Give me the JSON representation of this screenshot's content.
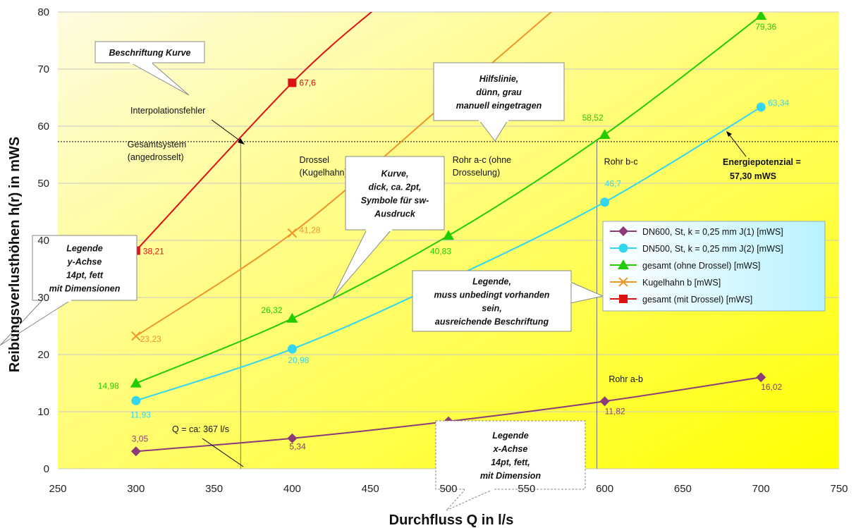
{
  "chart_data": {
    "type": "line",
    "xlabel": "Durchfluss Q in l/s",
    "ylabel": "Reibungsverlusthöhen h(r) in mWS",
    "xlim": [
      250,
      750
    ],
    "ylim": [
      0,
      80
    ],
    "xticks": [
      250,
      300,
      350,
      400,
      450,
      500,
      550,
      600,
      650,
      700,
      750
    ],
    "yticks": [
      0,
      10,
      20,
      30,
      40,
      50,
      60,
      70,
      80
    ],
    "grid": "horizontal",
    "legend_position": "right",
    "background": {
      "from": "#fffbe0",
      "to": "#ffff00"
    },
    "series": [
      {
        "name": "DN600, St, k = 0,25 mm J(1) [mWS]",
        "color": "#8b3a7a",
        "marker": "diamond",
        "x": [
          300,
          400,
          500,
          600,
          700
        ],
        "y": [
          3.05,
          5.34,
          8.3,
          11.82,
          16.02
        ],
        "labels": [
          "3,05",
          "5,34",
          "",
          "11,82",
          "16,02"
        ]
      },
      {
        "name": "DN500, St, k = 0,25 mm J(2) [mWS]",
        "color": "#33d6ee",
        "marker": "circle",
        "x": [
          300,
          400,
          500,
          600,
          700
        ],
        "y": [
          11.93,
          20.98,
          33.1,
          46.7,
          63.34
        ],
        "labels": [
          "11,93",
          "20,98",
          "",
          "46,7",
          "63,34"
        ]
      },
      {
        "name": "gesamt (ohne Drossel) [mWS]",
        "color": "#22cc00",
        "marker": "triangle",
        "x": [
          300,
          400,
          500,
          600,
          700
        ],
        "y": [
          14.98,
          26.32,
          40.83,
          58.52,
          79.36
        ],
        "labels": [
          "14,98",
          "26,32",
          "40,83",
          "58,52",
          "79,36"
        ]
      },
      {
        "name": "Kugelhahn b [mWS]",
        "color": "#f0952a",
        "marker": "x",
        "x": [
          300,
          400,
          500,
          570
        ],
        "y": [
          23.23,
          41.28,
          64.5,
          81
        ],
        "labels": [
          "23,23",
          "41,28",
          "",
          ""
        ]
      },
      {
        "name": "gesamt (mit Drossel) [mWS]",
        "color": "#dd1111",
        "marker": "square",
        "x": [
          300,
          400,
          455
        ],
        "y": [
          38.21,
          67.6,
          81
        ],
        "labels": [
          "38,21",
          "67,6",
          ""
        ]
      }
    ],
    "reference_line": {
      "y": 57.3,
      "color": "#333333"
    },
    "vertical_lines": [
      367,
      595
    ],
    "region_labels": [
      {
        "lines": [
          "Gesamtsystem",
          "(angedrosselt)"
        ],
        "x": 300,
        "y": 56.3
      },
      {
        "lines": [
          "Drossel",
          "(Kugelhahn)"
        ],
        "x": 410,
        "y": 53.6
      },
      {
        "lines": [
          "Rohr  a-c (ohne",
          "Drosselung)"
        ],
        "x": 508,
        "y": 53.6
      },
      {
        "lines": [
          "Rohr b-c"
        ],
        "x": 605,
        "y": 53.3
      },
      {
        "lines": [
          "Rohr a-b"
        ],
        "x": 608,
        "y": 15.2
      }
    ],
    "annotations": {
      "interpolation": "Interpolationsfehler",
      "energy_line1": "Energiepotenzial =",
      "energy_line2": "57,30 mWS",
      "q_label": "Q = ca: 367 l/s"
    },
    "callouts": {
      "curve_label": [
        "Beschriftung Kurve"
      ],
      "helper_line": [
        "Hilfslinie,",
        "dünn, grau",
        "manuell eingetragen"
      ],
      "curve": [
        "Kurve,",
        "dick, ca. 2pt,",
        "Symbole für sw-",
        "Ausdruck"
      ],
      "legend": [
        "Legende,",
        "muss unbedingt vorhanden",
        "sein,",
        "ausreichende Beschriftung"
      ],
      "y_axis": [
        "Legende",
        "y-Achse",
        "14pt, fett",
        "mit Dimensionen"
      ],
      "x_axis": [
        "Legende",
        "x-Achse",
        "14pt, fett,",
        "mit Dimension"
      ]
    }
  }
}
